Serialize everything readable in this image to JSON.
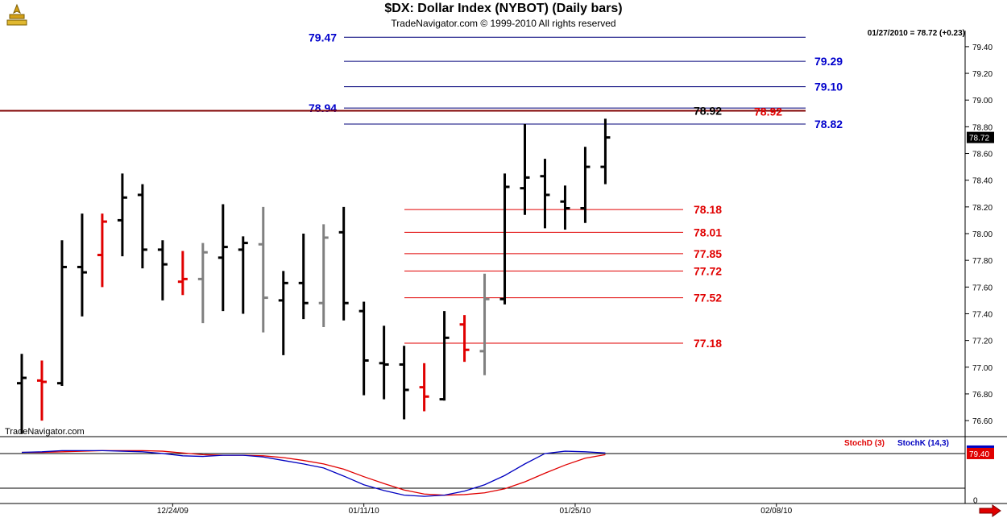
{
  "title": "$DX:  Dollar Index (NYBOT)  (Daily bars)",
  "subtitle": "TradeNavigator.com © 1999-2010 All rights reserved",
  "last_info": "01/27/2010 = 78.72 (+0.23)",
  "brand": "TradeNavigator.com",
  "icons": {
    "logo": "trade-navigator-logo-icon",
    "scroll": "red-arrow-right-icon"
  },
  "colors": {
    "up_bar": "#000000",
    "down_bar": "#e00000",
    "neutral_bar": "#808080",
    "blue_level": "#0000cc",
    "red_level": "#e00000",
    "stoch_d": "#e00000",
    "stoch_k": "#0000c0"
  },
  "chart_data": [
    {
      "type": "ohlc",
      "ylim": [
        76.48,
        79.52
      ],
      "y_ticks": [
        "76.60",
        "76.80",
        "77.00",
        "77.20",
        "77.40",
        "77.60",
        "77.80",
        "78.00",
        "78.20",
        "78.40",
        "78.60",
        "78.80",
        "79.00",
        "79.20",
        "79.40"
      ],
      "x_ticks": [
        "12/24/09",
        "01/11/10",
        "01/25/10",
        "02/08/10"
      ],
      "last_value_label": "78.72",
      "bars": [
        {
          "o": 76.88,
          "h": 77.1,
          "l": 76.5,
          "c": 76.92,
          "color": "black"
        },
        {
          "o": 76.9,
          "h": 77.05,
          "l": 76.6,
          "c": 76.89,
          "color": "red"
        },
        {
          "o": 76.88,
          "h": 77.95,
          "l": 76.86,
          "c": 77.75,
          "color": "black"
        },
        {
          "o": 77.75,
          "h": 78.15,
          "l": 77.38,
          "c": 77.71,
          "color": "black"
        },
        {
          "o": 77.84,
          "h": 78.15,
          "l": 77.6,
          "c": 78.09,
          "color": "red"
        },
        {
          "o": 78.1,
          "h": 78.45,
          "l": 77.83,
          "c": 78.27,
          "color": "black"
        },
        {
          "o": 78.29,
          "h": 78.37,
          "l": 77.74,
          "c": 77.88,
          "color": "black"
        },
        {
          "o": 77.88,
          "h": 77.95,
          "l": 77.5,
          "c": 77.77,
          "color": "black"
        },
        {
          "o": 77.64,
          "h": 77.87,
          "l": 77.54,
          "c": 77.66,
          "color": "red"
        },
        {
          "o": 77.66,
          "h": 77.93,
          "l": 77.33,
          "c": 77.86,
          "color": "gray"
        },
        {
          "o": 77.82,
          "h": 78.22,
          "l": 77.42,
          "c": 77.9,
          "color": "black"
        },
        {
          "o": 77.88,
          "h": 77.98,
          "l": 77.4,
          "c": 77.93,
          "color": "black"
        },
        {
          "o": 77.92,
          "h": 78.2,
          "l": 77.26,
          "c": 77.52,
          "color": "gray"
        },
        {
          "o": 77.5,
          "h": 77.72,
          "l": 77.09,
          "c": 77.63,
          "color": "black"
        },
        {
          "o": 77.63,
          "h": 78.0,
          "l": 77.36,
          "c": 77.48,
          "color": "black"
        },
        {
          "o": 77.48,
          "h": 78.07,
          "l": 77.3,
          "c": 77.97,
          "color": "gray"
        },
        {
          "o": 78.01,
          "h": 78.2,
          "l": 77.35,
          "c": 77.48,
          "color": "black"
        },
        {
          "o": 77.42,
          "h": 77.49,
          "l": 76.79,
          "c": 77.05,
          "color": "black"
        },
        {
          "o": 77.03,
          "h": 77.31,
          "l": 76.76,
          "c": 77.02,
          "color": "black"
        },
        {
          "o": 77.02,
          "h": 77.16,
          "l": 76.61,
          "c": 76.83,
          "color": "black"
        },
        {
          "o": 76.85,
          "h": 77.03,
          "l": 76.67,
          "c": 76.78,
          "color": "red"
        },
        {
          "o": 76.76,
          "h": 77.42,
          "l": 76.75,
          "c": 77.22,
          "color": "black"
        },
        {
          "o": 77.32,
          "h": 77.39,
          "l": 77.04,
          "c": 77.13,
          "color": "red"
        },
        {
          "o": 77.12,
          "h": 77.7,
          "l": 76.94,
          "c": 77.51,
          "color": "gray"
        },
        {
          "o": 77.51,
          "h": 78.45,
          "l": 77.47,
          "c": 78.35,
          "color": "black"
        },
        {
          "o": 78.34,
          "h": 78.82,
          "l": 78.14,
          "c": 78.42,
          "color": "black"
        },
        {
          "o": 78.43,
          "h": 78.56,
          "l": 78.04,
          "c": 78.29,
          "color": "black"
        },
        {
          "o": 78.24,
          "h": 78.36,
          "l": 78.03,
          "c": 78.19,
          "color": "black"
        },
        {
          "o": 78.19,
          "h": 78.65,
          "l": 78.08,
          "c": 78.5,
          "color": "black"
        },
        {
          "o": 78.5,
          "h": 78.86,
          "l": 78.37,
          "c": 78.72,
          "color": "black"
        }
      ],
      "levels_blue": [
        {
          "value": 79.47,
          "label": "79.47",
          "label_pos": "left"
        },
        {
          "value": 79.29,
          "label": "79.29",
          "label_pos": "right"
        },
        {
          "value": 79.1,
          "label": "79.10",
          "label_pos": "right"
        },
        {
          "value": 78.94,
          "label": "78.94",
          "label_pos": "left"
        },
        {
          "value": 78.82,
          "label": "78.82",
          "label_pos": "right"
        }
      ],
      "levels_red": [
        {
          "value": 78.18,
          "label": "78.18"
        },
        {
          "value": 78.01,
          "label": "78.01"
        },
        {
          "value": 77.85,
          "label": "77.85"
        },
        {
          "value": 77.72,
          "label": "77.72"
        },
        {
          "value": 77.52,
          "label": "77.52"
        },
        {
          "value": 77.18,
          "label": "77.18"
        }
      ],
      "long_line": {
        "value": 78.92,
        "labels": [
          "78.92",
          "78.92"
        ]
      }
    },
    {
      "type": "line",
      "ylim": [
        -5,
        105
      ],
      "y_ticks": [
        "0"
      ],
      "reference_lines": [
        80,
        20
      ],
      "last_value_label": "79.40",
      "series": [
        {
          "name": "StochD (3)",
          "color": "red",
          "values": [
            82,
            82,
            83,
            84,
            85,
            85,
            85,
            84,
            81,
            78,
            77,
            77,
            76,
            73,
            68,
            62,
            53,
            40,
            28,
            17,
            10,
            8,
            9,
            12,
            19,
            31,
            46,
            60,
            72,
            78
          ]
        },
        {
          "name": "StochK (14,3)",
          "color": "blue",
          "values": [
            82,
            83,
            85,
            85,
            85,
            84,
            83,
            80,
            76,
            75,
            77,
            77,
            74,
            68,
            62,
            55,
            41,
            26,
            16,
            8,
            6,
            8,
            15,
            26,
            42,
            62,
            80,
            84,
            83,
            81
          ]
        }
      ]
    }
  ]
}
